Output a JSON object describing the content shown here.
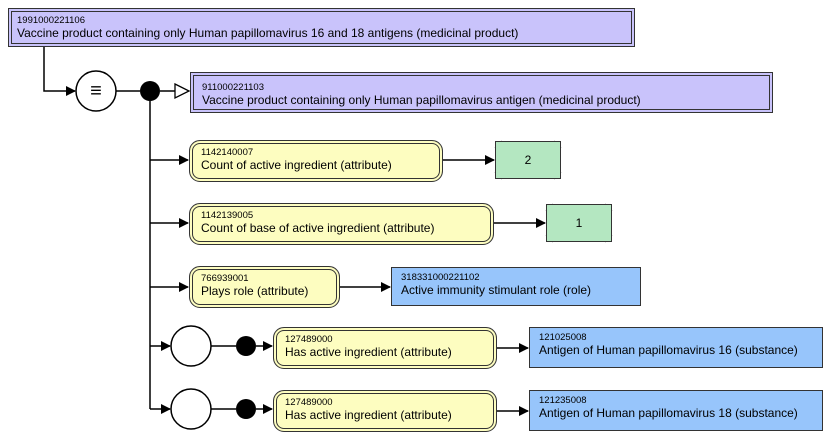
{
  "focus": {
    "id": "1991000221106",
    "term": "Vaccine product containing only Human papillomavirus 16 and 18 antigens (medicinal product)"
  },
  "parent": {
    "id": "911000221103",
    "term": "Vaccine product containing only Human papillomavirus antigen (medicinal product)"
  },
  "definition_symbol": "≡",
  "attributes": [
    {
      "id": "1142140007",
      "term": "Count of active ingredient (attribute)",
      "value": "2"
    },
    {
      "id": "1142139005",
      "term": "Count of base of active ingredient (attribute)",
      "value": "1"
    },
    {
      "id": "766939001",
      "term": "Plays role (attribute)",
      "target_id": "318331000221102",
      "target_term": "Active immunity stimulant role (role)"
    },
    {
      "id": "127489000",
      "term": "Has active ingredient (attribute)",
      "target_id": "121025008",
      "target_term": "Antigen of Human papillomavirus 16 (substance)"
    },
    {
      "id": "127489000",
      "term": "Has active ingredient (attribute)",
      "target_id": "121235008",
      "target_term": "Antigen of Human papillomavirus 18 (substance)"
    }
  ],
  "colors": {
    "defined_concept": "#c9c3fb",
    "primitive_concept": "#97c5fb",
    "attribute": "#fdfdc0",
    "concrete_value": "#b4e7c1"
  }
}
